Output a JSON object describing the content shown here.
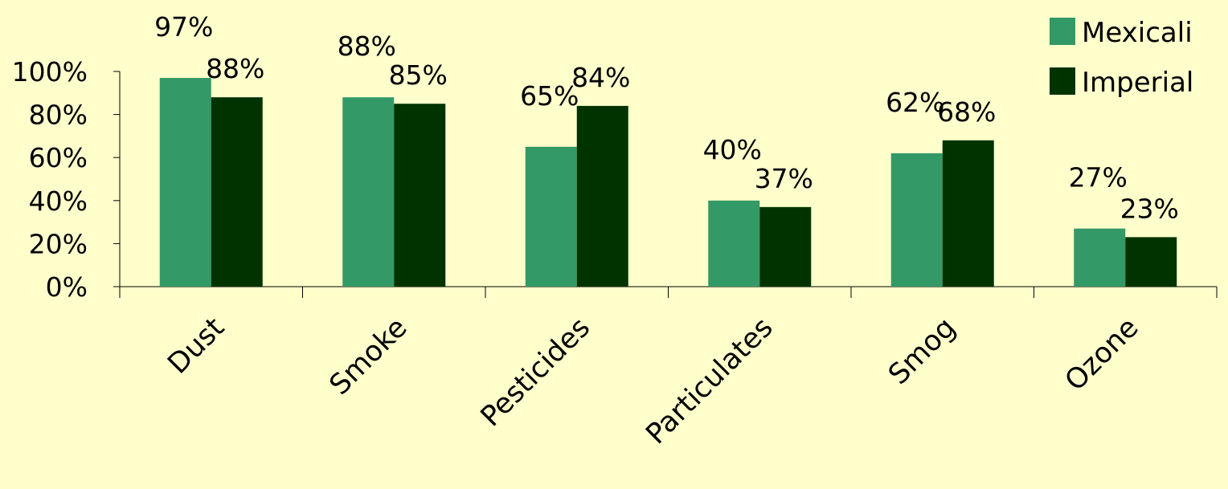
{
  "chart_data": {
    "type": "bar",
    "categories": [
      "Dust",
      "Smoke",
      "Pesticides",
      "Particulates",
      "Smog",
      "Ozone"
    ],
    "series": [
      {
        "name": "Mexicali",
        "values": [
          97,
          88,
          65,
          40,
          62,
          27
        ],
        "labels": [
          "97%",
          "88%",
          "65%",
          "40%",
          "62%",
          "27%"
        ],
        "color": "#339966"
      },
      {
        "name": "Imperial",
        "values": [
          88,
          85,
          84,
          37,
          68,
          23
        ],
        "labels": [
          "88%",
          "85%",
          "84%",
          "37%",
          "68%",
          "23%"
        ],
        "color": "#003300"
      }
    ],
    "ylim": [
      0,
      100
    ],
    "yticks": [
      {
        "value": 0,
        "label": "0%"
      },
      {
        "value": 20,
        "label": "20%"
      },
      {
        "value": 40,
        "label": "40%"
      },
      {
        "value": 60,
        "label": "60%"
      },
      {
        "value": 80,
        "label": "80%"
      },
      {
        "value": 100,
        "label": "100%"
      }
    ],
    "title": "",
    "xlabel": "",
    "ylabel": "",
    "grid": false,
    "legend_position": "top-right",
    "background": "#FFFFCC"
  }
}
